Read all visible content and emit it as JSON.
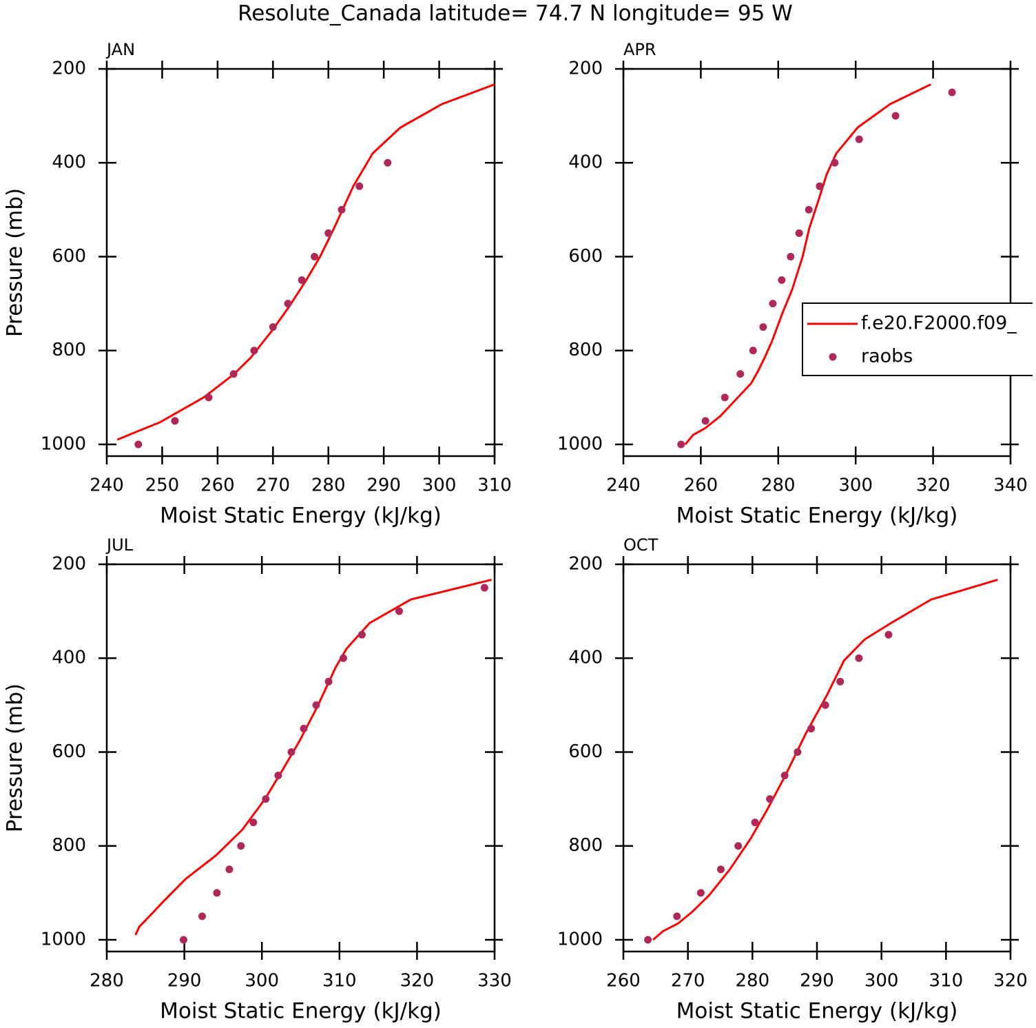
{
  "title": "Resolute_Canada  latitude= 74.7 N longitude= 95 W",
  "chart_data": [
    {
      "type": "line",
      "title": "JAN",
      "xlabel": "Moist Static Energy (kJ/kg)",
      "ylabel": "Pressure (mb)",
      "xlim": [
        240,
        310
      ],
      "xticks": [
        240,
        250,
        260,
        270,
        280,
        290,
        300,
        310
      ],
      "ylim": [
        1025,
        200
      ],
      "yticks": [
        200,
        400,
        600,
        800,
        1000
      ],
      "series": [
        {
          "type": "line",
          "color": "#ff0000",
          "x": [
            241.9,
            245.6,
            249.6,
            253.3,
            257.5,
            263,
            266,
            270,
            273,
            276,
            278.5,
            281,
            284.5,
            288,
            293,
            300.5,
            310
          ],
          "values": [
            990,
            972,
            953,
            928,
            900,
            850,
            815,
            755,
            705,
            650,
            600,
            540,
            450,
            380,
            325,
            275,
            233
          ]
        },
        {
          "type": "scatter",
          "color": "#b0285a",
          "x": [
            245.7,
            252.3,
            258.4,
            262.9,
            266.6,
            270.0,
            272.7,
            275.2,
            277.5,
            280.0,
            282.4,
            285.6,
            290.7
          ],
          "values": [
            1000,
            950,
            900,
            850,
            800,
            750,
            700,
            650,
            600,
            550,
            500,
            450,
            400
          ]
        }
      ]
    },
    {
      "type": "line",
      "title": "APR",
      "xlabel": "Moist Static Energy (kJ/kg)",
      "xlim": [
        240,
        340
      ],
      "xticks": [
        240,
        260,
        280,
        300,
        320,
        340
      ],
      "ylim": [
        1025,
        200
      ],
      "yticks": [
        200,
        400,
        600,
        800,
        1000
      ],
      "legend": "right",
      "series": [
        {
          "name": "f.e20.F2000.f09_",
          "type": "line",
          "color": "#ff0000",
          "x": [
            256,
            258,
            261.2,
            265,
            269,
            273,
            274.7,
            276.5,
            278.4,
            281.1,
            283.6,
            286.3,
            288,
            290.4,
            292.5,
            295,
            300.5,
            308.9,
            319.4
          ],
          "values": [
            1000,
            980,
            965,
            940,
            905,
            870,
            845,
            815,
            780,
            720,
            670,
            600,
            540,
            480,
            425,
            380,
            325,
            275,
            233
          ]
        },
        {
          "name": "raobs",
          "type": "scatter",
          "color": "#b0285a",
          "x": [
            254.9,
            261.2,
            266.2,
            270.2,
            273.5,
            276.1,
            278.6,
            280.9,
            283.2,
            285.4,
            287.9,
            290.7,
            294.6,
            300.9,
            310.3,
            324.9
          ],
          "values": [
            1000,
            950,
            900,
            850,
            800,
            750,
            700,
            650,
            600,
            550,
            500,
            450,
            400,
            350,
            300,
            250
          ]
        }
      ]
    },
    {
      "type": "line",
      "title": "JUL",
      "xlabel": "Moist Static Energy (kJ/kg)",
      "ylabel": "Pressure (mb)",
      "xlim": [
        280,
        330
      ],
      "xticks": [
        280,
        290,
        300,
        310,
        320,
        330
      ],
      "ylim": [
        1025,
        200
      ],
      "yticks": [
        200,
        400,
        600,
        800,
        1000
      ],
      "series": [
        {
          "type": "line",
          "color": "#ff0000",
          "x": [
            283.7,
            284.2,
            285.2,
            287.5,
            290.2,
            294.1,
            297.5,
            300.4,
            302.6,
            304.9,
            307.1,
            309.5,
            310.9,
            313.9,
            319.2,
            329.6
          ],
          "values": [
            990,
            972,
            955,
            915,
            870,
            820,
            765,
            700,
            640,
            575,
            505,
            420,
            380,
            325,
            275,
            233
          ]
        },
        {
          "type": "scatter",
          "color": "#b0285a",
          "x": [
            289.9,
            292.3,
            294.2,
            295.8,
            297.3,
            298.9,
            300.5,
            302.1,
            303.8,
            305.4,
            307.0,
            308.6,
            310.5,
            312.9,
            317.7,
            328.7
          ],
          "values": [
            1000,
            950,
            900,
            850,
            800,
            750,
            700,
            650,
            600,
            550,
            500,
            450,
            400,
            350,
            300,
            250
          ]
        }
      ]
    },
    {
      "type": "line",
      "title": "OCT",
      "xlabel": "Moist Static Energy (kJ/kg)",
      "xlim": [
        260,
        320
      ],
      "xticks": [
        260,
        270,
        280,
        290,
        300,
        310,
        320
      ],
      "ylim": [
        1025,
        200
      ],
      "yticks": [
        200,
        400,
        600,
        800,
        1000
      ],
      "series": [
        {
          "type": "line",
          "color": "#ff0000",
          "x": [
            264.6,
            266.1,
            268.5,
            270.7,
            273.3,
            276.5,
            279.7,
            282.4,
            285.1,
            288.3,
            291.5,
            294.2,
            297.4,
            301.5,
            307.7,
            318
          ],
          "values": [
            1000,
            982,
            965,
            940,
            905,
            850,
            785,
            720,
            650,
            560,
            480,
            405,
            360,
            325,
            275,
            233
          ]
        },
        {
          "type": "scatter",
          "color": "#b0285a",
          "x": [
            263.8,
            268.3,
            272.0,
            275.1,
            277.8,
            280.4,
            282.7,
            285.0,
            287.0,
            289.1,
            291.3,
            293.6,
            296.5,
            301.1
          ],
          "values": [
            1000,
            950,
            900,
            850,
            800,
            750,
            700,
            650,
            600,
            550,
            500,
            450,
            400,
            350
          ]
        }
      ]
    }
  ]
}
